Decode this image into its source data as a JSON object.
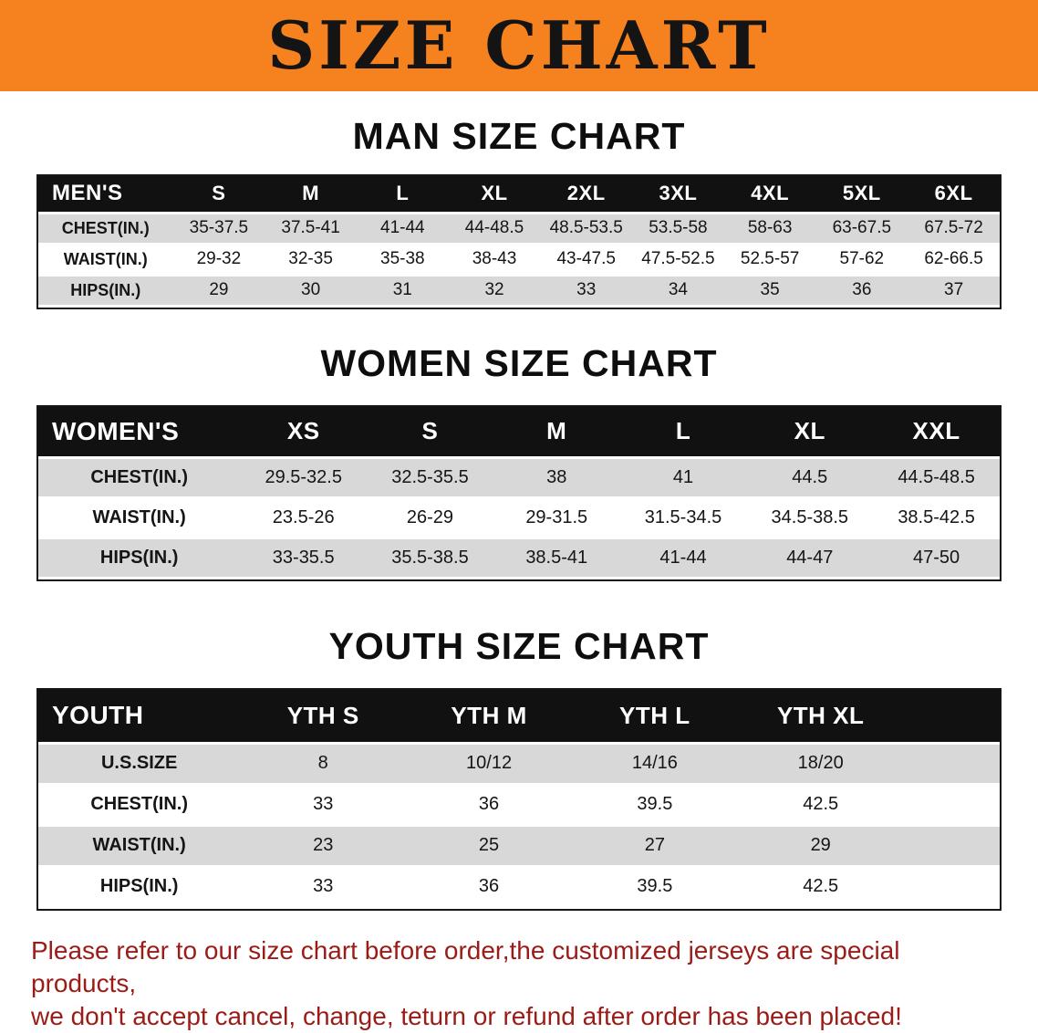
{
  "banner": {
    "title": "SIZE CHART"
  },
  "colors": {
    "banner_bg": "#F5821F",
    "table_header_bg": "#111111",
    "row_stripe": "#D8D8D8",
    "disclaimer_text": "#9B1B17"
  },
  "sections": {
    "men": {
      "heading": "MAN SIZE CHART",
      "table": {
        "header_label": "MEN'S",
        "columns": [
          "S",
          "M",
          "L",
          "XL",
          "2XL",
          "3XL",
          "4XL",
          "5XL",
          "6XL"
        ],
        "rows": [
          {
            "label": "CHEST(IN.)",
            "values": [
              "35-37.5",
              "37.5-41",
              "41-44",
              "44-48.5",
              "48.5-53.5",
              "53.5-58",
              "58-63",
              "63-67.5",
              "67.5-72"
            ]
          },
          {
            "label": "WAIST(IN.)",
            "values": [
              "29-32",
              "32-35",
              "35-38",
              "38-43",
              "43-47.5",
              "47.5-52.5",
              "52.5-57",
              "57-62",
              "62-66.5"
            ]
          },
          {
            "label": "HIPS(IN.)",
            "values": [
              "29",
              "30",
              "31",
              "32",
              "33",
              "34",
              "35",
              "36",
              "37"
            ]
          }
        ]
      }
    },
    "women": {
      "heading": "WOMEN SIZE CHART",
      "table": {
        "header_label": "WOMEN'S",
        "columns": [
          "XS",
          "S",
          "M",
          "L",
          "XL",
          "XXL"
        ],
        "rows": [
          {
            "label": "CHEST(IN.)",
            "values": [
              "29.5-32.5",
              "32.5-35.5",
              "38",
              "41",
              "44.5",
              "44.5-48.5"
            ]
          },
          {
            "label": "WAIST(IN.)",
            "values": [
              "23.5-26",
              "26-29",
              "29-31.5",
              "31.5-34.5",
              "34.5-38.5",
              "38.5-42.5"
            ]
          },
          {
            "label": "HIPS(IN.)",
            "values": [
              "33-35.5",
              "35.5-38.5",
              "38.5-41",
              "41-44",
              "44-47",
              "47-50"
            ]
          }
        ]
      }
    },
    "youth": {
      "heading": "YOUTH SIZE CHART",
      "table": {
        "header_label": "YOUTH",
        "columns": [
          "YTH S",
          "YTH M",
          "YTH L",
          "YTH XL"
        ],
        "rows": [
          {
            "label": "U.S.SIZE",
            "values": [
              "8",
              "10/12",
              "14/16",
              "18/20"
            ]
          },
          {
            "label": "CHEST(IN.)",
            "values": [
              "33",
              "36",
              "39.5",
              "42.5"
            ]
          },
          {
            "label": "WAIST(IN.)",
            "values": [
              "23",
              "25",
              "27",
              "29"
            ]
          },
          {
            "label": "HIPS(IN.)",
            "values": [
              "33",
              "36",
              "39.5",
              "42.5"
            ]
          }
        ]
      }
    }
  },
  "disclaimer": {
    "line1": "Please refer to our size chart before order,the customized jerseys are special products,",
    "line2": "we don't accept cancel, change, teturn or refund after order has been placed!"
  }
}
